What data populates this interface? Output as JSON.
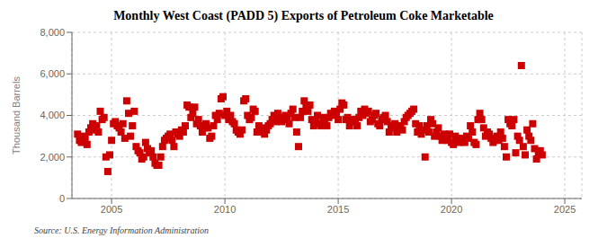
{
  "chart_data": {
    "type": "scatter",
    "title": "Monthly West Coast (PADD 5) Exports of Petroleum Coke Marketable",
    "ylabel": "Thousand Barrels",
    "source": "Source: U.S. Energy Information Administration",
    "color": "#cc0000",
    "marker": "square",
    "grid": true,
    "xlim": [
      2003.25,
      2025.75
    ],
    "ylim": [
      0,
      8000
    ],
    "xticks": [
      2005,
      2010,
      2015,
      2020,
      2025
    ],
    "yticks": [
      0,
      {
        "value": 2000,
        "label": "2,000"
      },
      {
        "value": 4000,
        "label": "4,000"
      },
      {
        "value": 6000,
        "label": "6,000"
      },
      {
        "value": 8000,
        "label": "8,000"
      }
    ],
    "x": [
      2003.5,
      2003.5833,
      2003.6667,
      2003.75,
      2003.8333,
      2003.9167,
      2004,
      2004.0833,
      2004.1667,
      2004.25,
      2004.3333,
      2004.4167,
      2004.5,
      2004.5833,
      2004.6667,
      2004.75,
      2004.8333,
      2004.9167,
      2005,
      2005.0833,
      2005.1667,
      2005.25,
      2005.3333,
      2005.4167,
      2005.5,
      2005.5833,
      2005.6667,
      2005.75,
      2005.8333,
      2005.9167,
      2006,
      2006.0833,
      2006.1667,
      2006.25,
      2006.3333,
      2006.4167,
      2006.5,
      2006.5833,
      2006.6667,
      2006.75,
      2006.8333,
      2006.9167,
      2007,
      2007.0833,
      2007.1667,
      2007.25,
      2007.3333,
      2007.4167,
      2007.5,
      2007.5833,
      2007.6667,
      2007.75,
      2007.8333,
      2007.9167,
      2008,
      2008.0833,
      2008.1667,
      2008.25,
      2008.3333,
      2008.4167,
      2008.5,
      2008.5833,
      2008.6667,
      2008.75,
      2008.8333,
      2008.9167,
      2009,
      2009.0833,
      2009.1667,
      2009.25,
      2009.3333,
      2009.4167,
      2009.5,
      2009.5833,
      2009.6667,
      2009.75,
      2009.8333,
      2009.9167,
      2010,
      2010.0833,
      2010.1667,
      2010.25,
      2010.3333,
      2010.4167,
      2010.5,
      2010.5833,
      2010.6667,
      2010.75,
      2010.8333,
      2010.9167,
      2011,
      2011.0833,
      2011.1667,
      2011.25,
      2011.3333,
      2011.4167,
      2011.5,
      2011.5833,
      2011.6667,
      2011.75,
      2011.8333,
      2011.9167,
      2012,
      2012.0833,
      2012.1667,
      2012.25,
      2012.3333,
      2012.4167,
      2012.5,
      2012.5833,
      2012.6667,
      2012.75,
      2012.8333,
      2012.9167,
      2013,
      2013.0833,
      2013.1667,
      2013.25,
      2013.3333,
      2013.4167,
      2013.5,
      2013.5833,
      2013.6667,
      2013.75,
      2013.8333,
      2013.9167,
      2014,
      2014.0833,
      2014.1667,
      2014.25,
      2014.3333,
      2014.4167,
      2014.5,
      2014.5833,
      2014.6667,
      2014.75,
      2014.8333,
      2014.9167,
      2015,
      2015.0833,
      2015.1667,
      2015.25,
      2015.3333,
      2015.4167,
      2015.5,
      2015.5833,
      2015.6667,
      2015.75,
      2015.8333,
      2015.9167,
      2016,
      2016.0833,
      2016.1667,
      2016.25,
      2016.3333,
      2016.4167,
      2016.5,
      2016.5833,
      2016.6667,
      2016.75,
      2016.8333,
      2016.9167,
      2017,
      2017.0833,
      2017.1667,
      2017.25,
      2017.3333,
      2017.4167,
      2017.5,
      2017.5833,
      2017.6667,
      2017.75,
      2017.8333,
      2017.9167,
      2018,
      2018.0833,
      2018.1667,
      2018.25,
      2018.3333,
      2018.4167,
      2018.5,
      2018.5833,
      2018.6667,
      2018.75,
      2018.8333,
      2018.9167,
      2019,
      2019.0833,
      2019.1667,
      2019.25,
      2019.3333,
      2019.4167,
      2019.5,
      2019.5833,
      2019.6667,
      2019.75,
      2019.8333,
      2019.9167,
      2020,
      2020.0833,
      2020.1667,
      2020.25,
      2020.3333,
      2020.4167,
      2020.5,
      2020.5833,
      2020.6667,
      2020.75,
      2020.8333,
      2020.9167,
      2021,
      2021.0833,
      2021.1667,
      2021.25,
      2021.3333,
      2021.4167,
      2021.5,
      2021.5833,
      2021.6667,
      2021.75,
      2021.8333,
      2021.9167,
      2022,
      2022.0833,
      2022.1667,
      2022.25,
      2022.3333,
      2022.4167,
      2022.5,
      2022.5833,
      2022.6667,
      2022.75,
      2022.8333,
      2022.9167,
      2023,
      2023.0833,
      2023.1667,
      2023.25,
      2023.3333,
      2023.4167,
      2023.5,
      2023.5833,
      2023.6667,
      2023.75,
      2023.8333,
      2023.9167,
      2024
    ],
    "values": [
      3100,
      2800,
      2700,
      3000,
      2900,
      2600,
      3200,
      3400,
      3600,
      3300,
      3500,
      3200,
      4200,
      3800,
      3900,
      2000,
      1300,
      2100,
      2800,
      3600,
      3700,
      3500,
      3400,
      3200,
      3600,
      2900,
      4700,
      4100,
      3000,
      3500,
      4200,
      2500,
      2300,
      2200,
      1900,
      2000,
      2700,
      2400,
      2200,
      2300,
      2000,
      1700,
      1600,
      1600,
      2000,
      2500,
      2800,
      2900,
      3000,
      3100,
      2800,
      2500,
      3200,
      3100,
      3000,
      3300,
      3200,
      3500,
      4500,
      4400,
      3900,
      4100,
      4400,
      3600,
      3800,
      3500,
      3200,
      3400,
      3600,
      3400,
      2900,
      3000,
      3500,
      4000,
      3800,
      4100,
      4800,
      4900,
      4000,
      4200,
      3800,
      4000,
      3700,
      3600,
      3300,
      3200,
      3100,
      3300,
      4700,
      4800,
      4000,
      3800,
      3900,
      4300,
      4200,
      3200,
      3500,
      3200,
      3400,
      3100,
      3300,
      3500,
      3600,
      3800,
      4000,
      3700,
      4100,
      3900,
      3700,
      3800,
      4000,
      3900,
      3600,
      4100,
      4300,
      3900,
      3200,
      2500,
      3900,
      4200,
      4700,
      4400,
      4200,
      4500,
      3800,
      3500,
      3700,
      4000,
      3600,
      3500,
      3900,
      3800,
      3500,
      3900,
      4100,
      4000,
      4200,
      4100,
      3800,
      4300,
      4600,
      4500,
      3800,
      3900,
      3500,
      3800,
      3700,
      3800,
      3500,
      3900,
      4200,
      4000,
      4300,
      4100,
      4200,
      3700,
      3800,
      4000,
      4100,
      3600,
      3500,
      3800,
      3900,
      4000,
      3700,
      3200,
      3500,
      3400,
      3600,
      3200,
      3500,
      3400,
      3300,
      3700,
      3900,
      4000,
      4100,
      4200,
      4300,
      3600,
      3200,
      3500,
      3100,
      3300,
      2000,
      3500,
      3200,
      3800,
      3600,
      3000,
      3200,
      3400,
      3000,
      2800,
      3100,
      2900,
      2800,
      3100,
      2700,
      2600,
      3000,
      2900,
      2700,
      2900,
      2800,
      2700,
      3000,
      2900,
      3500,
      3200,
      2700,
      2600,
      3800,
      4100,
      3800,
      3400,
      3000,
      3200,
      3100,
      2900,
      2700,
      2800,
      3000,
      2800,
      3200,
      2900,
      2500,
      2000,
      3800,
      3600,
      3500,
      3800,
      2200,
      3000,
      2800,
      6400,
      2500,
      2100,
      3300,
      3000,
      2800,
      3600,
      2400,
      1900,
      2200,
      2300,
      2100
    ]
  }
}
